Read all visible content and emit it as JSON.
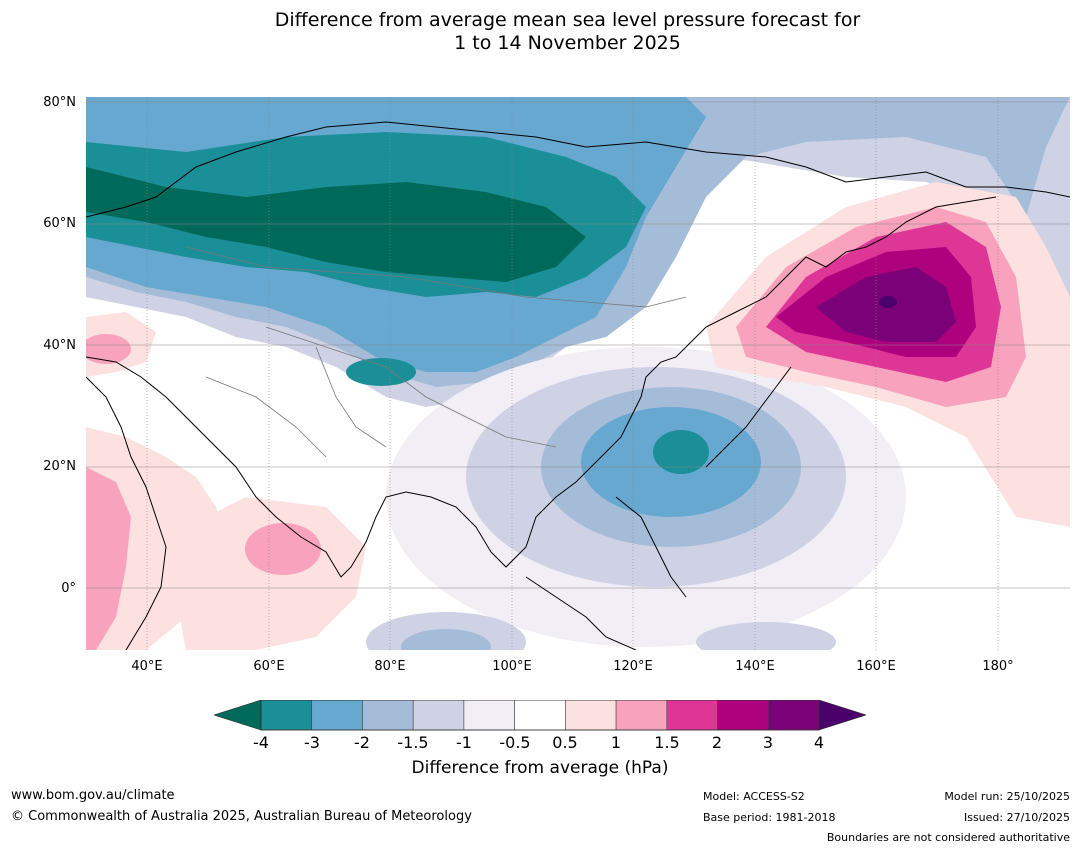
{
  "title": {
    "line1": "Difference from average mean sea level pressure forecast for",
    "line2": "1 to 14 November 2025"
  },
  "map": {
    "lat_ticks": [
      "80°N",
      "60°N",
      "40°N",
      "20°N",
      "0°"
    ],
    "lon_ticks": [
      "40°E",
      "60°E",
      "80°E",
      "100°E",
      "120°E",
      "140°E",
      "160°E",
      "180°"
    ],
    "palette": {
      "minus4_below": "#006a5a",
      "minus4_minus3": "#1b8f98",
      "minus3_minus2": "#66a8d0",
      "minus2_minus1_5": "#a5bcd9",
      "minus1_5_minus1": "#cfd1e5",
      "minus1_minus0_5": "#f1eef5",
      "neutral": "#ffffff",
      "p0_5_1": "#fde0e0",
      "p1_1_5": "#f9a2bd",
      "p1_5_2": "#de3696",
      "p2_3": "#ae017e",
      "p3_4": "#7a0177",
      "p4_above": "#49006a"
    }
  },
  "colorbar": {
    "ticks": [
      "-4",
      "-3",
      "-2",
      "-1.5",
      "-1",
      "-0.5",
      "0.5",
      "1",
      "1.5",
      "2",
      "3",
      "4"
    ],
    "colors": [
      "#1b8f98",
      "#66a8d0",
      "#a5bcd9",
      "#cfd1e5",
      "#f1eef5",
      "#ffffff",
      "#fde0e0",
      "#f9a2bd",
      "#de3696",
      "#ae017e",
      "#7a0177"
    ],
    "low_color": "#006a5a",
    "high_color": "#49006a",
    "label": "Difference from average (hPa)"
  },
  "footer": {
    "url": "www.bom.gov.au/climate",
    "copyright": "© Commonwealth of Australia 2025, Australian Bureau of Meteorology",
    "model": "Model: ACCESS-S2",
    "base_period": "Base period: 1981-2018",
    "model_run": "Model run: 25/10/2025",
    "issued": "Issued: 27/10/2025",
    "disclaimer": "Boundaries are not considered authoritative"
  }
}
